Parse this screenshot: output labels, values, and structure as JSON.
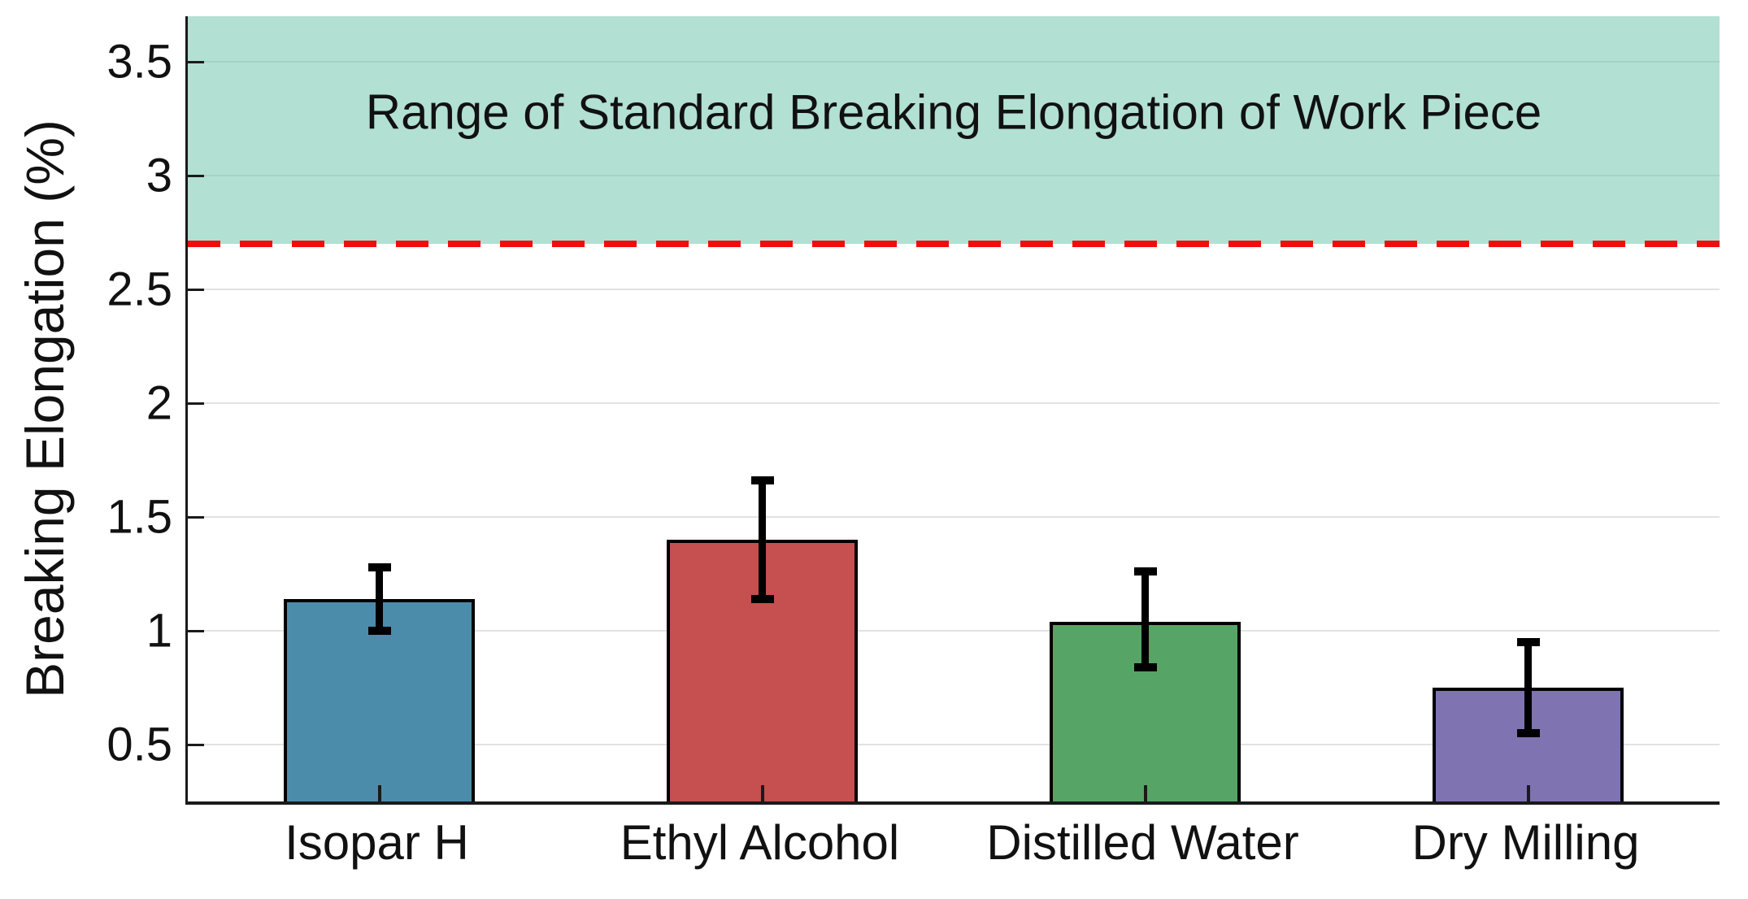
{
  "chart_data": {
    "type": "bar",
    "title": "",
    "ylabel": "Breaking Elongation (%)",
    "xlabel": "",
    "categories": [
      "Isopar H",
      "Ethyl Alcohol",
      "Distilled Water",
      "Dry Milling"
    ],
    "values": [
      1.14,
      1.4,
      1.04,
      0.75
    ],
    "error_low": [
      1.0,
      1.14,
      0.84,
      0.55
    ],
    "error_high": [
      1.28,
      1.66,
      1.26,
      0.95
    ],
    "bar_colors": [
      "#4C8CAB",
      "#C5504F",
      "#57A566",
      "#8073B2"
    ],
    "bar_edge_color": "#000000",
    "error_color": "#000000",
    "ylim": [
      0.25,
      3.7
    ],
    "ytick_labels": [
      "0.5",
      "1",
      "1.5",
      "2",
      "2.5",
      "3",
      "3.5"
    ],
    "yticks": [
      0.5,
      1,
      1.5,
      2,
      2.5,
      3,
      3.5
    ],
    "grid": true,
    "grid_color": "#E2E2E2",
    "axis_color": "#1A1A1A",
    "bar_width_fraction": 0.5,
    "reference_line": {
      "value": 2.7,
      "color": "#F20D0D",
      "style": "dashed"
    },
    "band": {
      "from": 2.7,
      "to": 3.7,
      "fill": "#66C2A5",
      "opacity": 0.5,
      "label": "Range of Standard Breaking Elongation of Work Piece"
    },
    "legend": null
  }
}
